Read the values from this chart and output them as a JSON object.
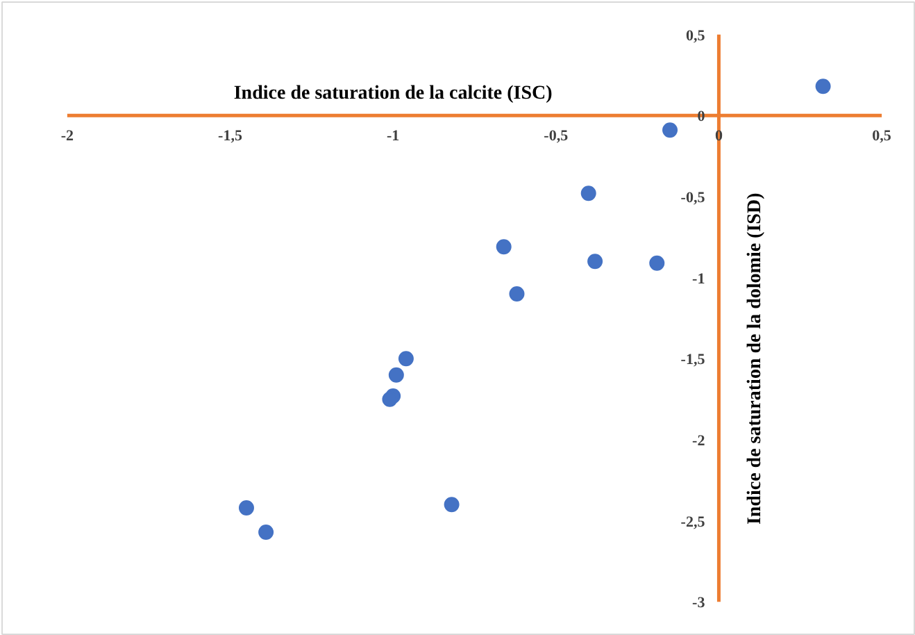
{
  "chart_data": {
    "type": "scatter",
    "xlabel": "Indice de saturation de la calcite (ISC)",
    "ylabel": "Indice de saturation de la dolomie (ISD)",
    "x": [
      0.32,
      -0.15,
      -0.4,
      -0.66,
      -0.38,
      -0.19,
      -0.62,
      -0.96,
      -0.99,
      -1.0,
      -1.01,
      -1.45,
      -1.39,
      -0.82
    ],
    "series": [
      {
        "color": "#4472c4",
        "values": [
          0.18,
          -0.09,
          -0.48,
          -0.81,
          -0.9,
          -0.91,
          -1.1,
          -1.5,
          -1.6,
          -1.73,
          -1.75,
          -2.42,
          -2.57,
          -2.4
        ]
      }
    ],
    "marker": "circle",
    "grid": false,
    "xlim": [
      -2.2,
      0.6
    ],
    "ylim": [
      -3.2,
      0.7
    ],
    "xticks": [
      {
        "value": -2,
        "label": "-2"
      },
      {
        "value": -1.5,
        "label": "-1,5"
      },
      {
        "value": -1,
        "label": "-1"
      },
      {
        "value": -0.5,
        "label": "-0,5"
      },
      {
        "value": 0,
        "label": "0"
      },
      {
        "value": 0.5,
        "label": "0,5"
      }
    ],
    "yticks": [
      {
        "value": 0.5,
        "label": "0,5"
      },
      {
        "value": 0,
        "label": "0"
      },
      {
        "value": -0.5,
        "label": "-0,5"
      },
      {
        "value": -1,
        "label": "-1"
      },
      {
        "value": -1.5,
        "label": "-1,5"
      },
      {
        "value": -2,
        "label": "-2"
      },
      {
        "value": -2.5,
        "label": "-2,5"
      },
      {
        "value": -3,
        "label": "-3"
      }
    ]
  }
}
